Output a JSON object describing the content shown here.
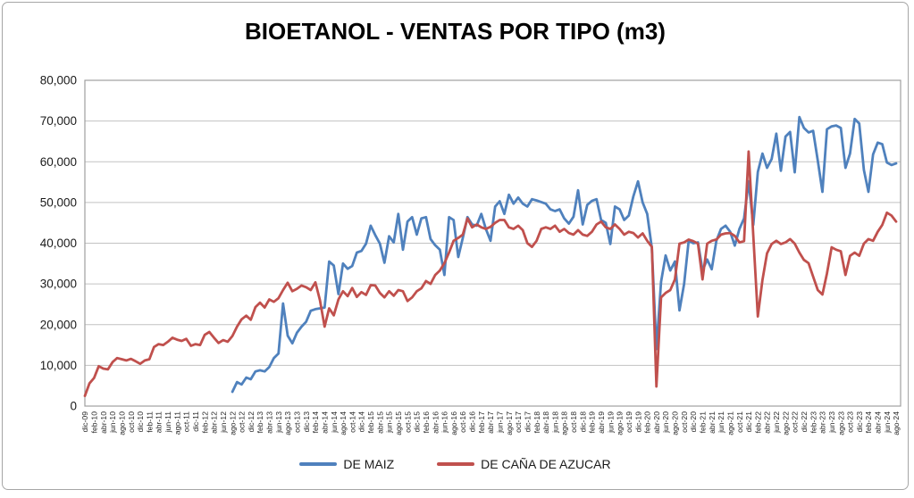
{
  "chart_data": {
    "type": "line",
    "title": "BIOETANOL - VENTAS POR TIPO (m3)",
    "xlabel": "",
    "ylabel": "",
    "grid": true,
    "legend_position": "bottom",
    "y_axis": {
      "min": 0,
      "max": 80000,
      "step": 10000,
      "tick_labels": [
        "80,000",
        "70,000",
        "60,000",
        "50,000",
        "40,000",
        "30,000",
        "20,000",
        "10,000",
        "0"
      ]
    },
    "x_axis": {
      "total_points": 177,
      "months_per_tick": 2,
      "tick_labels": [
        "dic-09",
        "feb-10",
        "abr-10",
        "jun-10",
        "ago-10",
        "oct-10",
        "dic-10",
        "feb-11",
        "abr-11",
        "jun-11",
        "ago-11",
        "oct-11",
        "dic-11",
        "feb-12",
        "abr-12",
        "jun-12",
        "ago-12",
        "oct-12",
        "dic-12",
        "feb-13",
        "abr-13",
        "jun-13",
        "ago-13",
        "oct-13",
        "dic-13",
        "feb-14",
        "abr-14",
        "jun-14",
        "ago-14",
        "oct-14",
        "dic-14",
        "feb-15",
        "abr-15",
        "jun-15",
        "ago-15",
        "oct-15",
        "dic-15",
        "feb-16",
        "abr-16",
        "jun-16",
        "ago-16",
        "oct-16",
        "dic-16",
        "feb-17",
        "abr-17",
        "jun-17",
        "ago-17",
        "oct-17",
        "dic-17",
        "feb-18",
        "abr-18",
        "jun-18",
        "ago-18",
        "oct-18",
        "dic-18",
        "feb-19",
        "abr-19",
        "jun-19",
        "ago-19",
        "oct-19",
        "dic-19",
        "feb-20",
        "abr-20",
        "jun-20",
        "ago-20",
        "oct-20",
        "dic-20",
        "feb-21",
        "abr-21",
        "jun-21",
        "ago-21",
        "oct-21",
        "dic-21",
        "feb-22",
        "abr-22",
        "jun-22",
        "ago-22",
        "oct-22",
        "dic-22",
        "feb-23",
        "abr-23",
        "jun-23",
        "ago-23",
        "oct-23",
        "dic-23",
        "feb-24",
        "abr-24",
        "jun-24",
        "ago-24"
      ]
    },
    "series": [
      {
        "name": "DE MAIZ",
        "color": "#4F81BD",
        "values": [
          null,
          null,
          null,
          null,
          null,
          null,
          null,
          null,
          null,
          null,
          null,
          null,
          null,
          null,
          null,
          null,
          null,
          null,
          null,
          null,
          null,
          null,
          null,
          null,
          null,
          null,
          null,
          null,
          null,
          null,
          null,
          null,
          3500,
          5900,
          5300,
          7000,
          6600,
          8500,
          8800,
          8500,
          9600,
          11800,
          12900,
          25200,
          17300,
          15400,
          18000,
          19500,
          20700,
          23400,
          23800,
          24000,
          24200,
          35500,
          34500,
          27500,
          35000,
          33700,
          34400,
          37700,
          38100,
          39900,
          44300,
          42000,
          39900,
          35200,
          41700,
          40200,
          47200,
          38400,
          45300,
          46400,
          42100,
          46100,
          46400,
          41000,
          39500,
          38400,
          32200,
          46400,
          45700,
          36600,
          41300,
          46400,
          44600,
          44300,
          47200,
          43500,
          40600,
          49000,
          50300,
          47200,
          51900,
          49700,
          51200,
          49700,
          49000,
          50800,
          50500,
          50100,
          49700,
          48300,
          47900,
          48300,
          46100,
          44800,
          46500,
          53000,
          44600,
          49400,
          50400,
          50800,
          45700,
          45000,
          39800,
          49000,
          48300,
          45700,
          46800,
          51500,
          55200,
          50000,
          47200,
          38800,
          14000,
          30500,
          37000,
          33300,
          35500,
          23500,
          30000,
          40600,
          40000,
          40200,
          33300,
          36000,
          33600,
          40600,
          43500,
          44300,
          42800,
          39400,
          43500,
          46100,
          55200,
          44500,
          57500,
          62000,
          58500,
          60700,
          66900,
          57800,
          66200,
          67300,
          57400,
          71000,
          68300,
          67200,
          67600,
          60300,
          52600,
          68000,
          68700,
          68900,
          68300,
          58500,
          62000,
          70500,
          69400,
          58000,
          52600,
          61800,
          64700,
          64300,
          59800,
          59200,
          59600
        ]
      },
      {
        "name": "DE CAÑA DE AZUCAR",
        "color": "#C0504D",
        "values": [
          2500,
          5600,
          6900,
          9800,
          9200,
          9000,
          10800,
          11800,
          11500,
          11200,
          11600,
          11000,
          10400,
          11200,
          11500,
          14500,
          15200,
          15000,
          15800,
          16800,
          16300,
          16000,
          16500,
          14800,
          15200,
          15000,
          17500,
          18200,
          16800,
          15500,
          16200,
          15800,
          17200,
          19500,
          21300,
          22200,
          21200,
          24300,
          25400,
          24200,
          26200,
          25600,
          26500,
          28500,
          30300,
          28200,
          28800,
          29600,
          29200,
          28500,
          30400,
          26000,
          19500,
          24000,
          22300,
          26200,
          28200,
          27000,
          29000,
          26800,
          28000,
          27300,
          29700,
          29600,
          27800,
          26700,
          28200,
          27100,
          28500,
          28200,
          25800,
          26700,
          28200,
          28900,
          30700,
          30000,
          32200,
          33300,
          35100,
          37700,
          40600,
          41300,
          42100,
          46100,
          43900,
          44600,
          43900,
          43500,
          44000,
          45000,
          45700,
          45700,
          43900,
          43500,
          44300,
          43200,
          40000,
          39100,
          40600,
          43500,
          43900,
          43500,
          44300,
          42800,
          43500,
          42500,
          42100,
          43200,
          42100,
          41800,
          42800,
          44600,
          45300,
          43900,
          43500,
          44600,
          43500,
          42100,
          42800,
          42500,
          41400,
          42400,
          40600,
          39100,
          4800,
          26700,
          27800,
          28500,
          31100,
          39900,
          40200,
          40900,
          40500,
          39900,
          31100,
          39900,
          40600,
          40900,
          42100,
          42400,
          42500,
          41800,
          40200,
          40500,
          62500,
          42000,
          22000,
          31000,
          37500,
          39800,
          40600,
          39800,
          40200,
          41000,
          39900,
          37700,
          35900,
          35100,
          31800,
          28500,
          27400,
          32600,
          39000,
          38400,
          38000,
          32200,
          36900,
          37700,
          36900,
          39900,
          41000,
          40600,
          42800,
          44500,
          47500,
          46800,
          45300
        ]
      }
    ]
  }
}
